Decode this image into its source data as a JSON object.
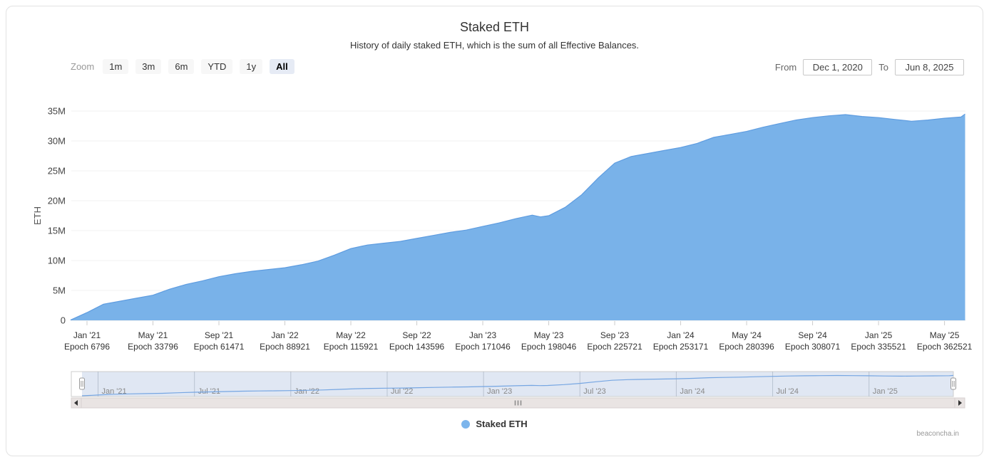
{
  "header": {
    "title": "Staked ETH",
    "subtitle": "History of daily staked ETH, which is the sum of all Effective Balances."
  },
  "toolbar": {
    "zoom_label": "Zoom",
    "zoom_buttons": [
      {
        "label": "1m",
        "selected": false
      },
      {
        "label": "3m",
        "selected": false
      },
      {
        "label": "6m",
        "selected": false
      },
      {
        "label": "YTD",
        "selected": false
      },
      {
        "label": "1y",
        "selected": false
      },
      {
        "label": "All",
        "selected": true
      }
    ],
    "from_label": "From",
    "from_value": "Dec 1, 2020",
    "to_label": "To",
    "to_value": "Jun 8, 2025"
  },
  "legend": {
    "series_label": "Staked ETH",
    "marker_color": "#7cb5ec"
  },
  "credits": "beaconcha.in",
  "chart_data": {
    "type": "area",
    "title": "Staked ETH",
    "xlabel": "",
    "ylabel": "ETH",
    "ylim": [
      0,
      35000000
    ],
    "grid": true,
    "legend_position": "bottom",
    "yticks": [
      {
        "v": 0,
        "label": "0"
      },
      {
        "v": 5,
        "label": "5M"
      },
      {
        "v": 10,
        "label": "10M"
      },
      {
        "v": 15,
        "label": "15M"
      },
      {
        "v": 20,
        "label": "20M"
      },
      {
        "v": 25,
        "label": "25M"
      },
      {
        "v": 30,
        "label": "30M"
      },
      {
        "v": 35,
        "label": "35M"
      }
    ],
    "xticks": [
      {
        "m": 1,
        "date": "Jan '21",
        "epoch": "Epoch 6796"
      },
      {
        "m": 5,
        "date": "May '21",
        "epoch": "Epoch 33796"
      },
      {
        "m": 9,
        "date": "Sep '21",
        "epoch": "Epoch 61471"
      },
      {
        "m": 13,
        "date": "Jan '22",
        "epoch": "Epoch 88921"
      },
      {
        "m": 17,
        "date": "May '22",
        "epoch": "Epoch 115921"
      },
      {
        "m": 21,
        "date": "Sep '22",
        "epoch": "Epoch 143596"
      },
      {
        "m": 25,
        "date": "Jan '23",
        "epoch": "Epoch 171046"
      },
      {
        "m": 29,
        "date": "May '23",
        "epoch": "Epoch 198046"
      },
      {
        "m": 33,
        "date": "Sep '23",
        "epoch": "Epoch 225721"
      },
      {
        "m": 37,
        "date": "Jan '24",
        "epoch": "Epoch 253171"
      },
      {
        "m": 41,
        "date": "May '24",
        "epoch": "Epoch 280396"
      },
      {
        "m": 45,
        "date": "Sep '24",
        "epoch": "Epoch 308071"
      },
      {
        "m": 49,
        "date": "Jan '25",
        "epoch": "Epoch 335521"
      },
      {
        "m": 53,
        "date": "May '25",
        "epoch": "Epoch 362521"
      }
    ],
    "navigator_ticks": [
      {
        "m": 1,
        "label": "Jan '21"
      },
      {
        "m": 7,
        "label": "Jul '21"
      },
      {
        "m": 13,
        "label": "Jan '22"
      },
      {
        "m": 19,
        "label": "Jul '22"
      },
      {
        "m": 25,
        "label": "Jan '23"
      },
      {
        "m": 31,
        "label": "Jul '23"
      },
      {
        "m": 37,
        "label": "Jan '24"
      },
      {
        "m": 43,
        "label": "Jul '24"
      },
      {
        "m": 49,
        "label": "Jan '25"
      }
    ],
    "series": [
      {
        "name": "Staked ETH",
        "color": "#7cb5ec",
        "fill_color": "#79b2e9",
        "line_color": "#5e9ce0",
        "x_unit": "month_index (0 = Dec 2020, 54 = Jun 2025)",
        "y_unit": "ETH, millions",
        "points": [
          [
            0,
            0.05
          ],
          [
            1,
            1.3
          ],
          [
            2,
            2.7
          ],
          [
            3,
            3.2
          ],
          [
            4,
            3.7
          ],
          [
            5,
            4.2
          ],
          [
            6,
            5.2
          ],
          [
            7,
            6.0
          ],
          [
            8,
            6.6
          ],
          [
            9,
            7.3
          ],
          [
            10,
            7.8
          ],
          [
            11,
            8.2
          ],
          [
            12,
            8.5
          ],
          [
            13,
            8.8
          ],
          [
            14,
            9.3
          ],
          [
            15,
            9.9
          ],
          [
            16,
            10.9
          ],
          [
            17,
            12.0
          ],
          [
            18,
            12.6
          ],
          [
            19,
            12.9
          ],
          [
            20,
            13.2
          ],
          [
            21,
            13.7
          ],
          [
            22,
            14.2
          ],
          [
            23,
            14.7
          ],
          [
            24,
            15.1
          ],
          [
            25,
            15.7
          ],
          [
            26,
            16.3
          ],
          [
            27,
            17.0
          ],
          [
            28,
            17.6
          ],
          [
            28.5,
            17.3
          ],
          [
            29,
            17.5
          ],
          [
            30,
            18.9
          ],
          [
            31,
            21.0
          ],
          [
            32,
            23.8
          ],
          [
            33,
            26.3
          ],
          [
            34,
            27.4
          ],
          [
            35,
            27.9
          ],
          [
            36,
            28.4
          ],
          [
            37,
            28.9
          ],
          [
            38,
            29.6
          ],
          [
            39,
            30.6
          ],
          [
            40,
            31.1
          ],
          [
            41,
            31.6
          ],
          [
            42,
            32.3
          ],
          [
            43,
            32.9
          ],
          [
            44,
            33.5
          ],
          [
            45,
            33.9
          ],
          [
            46,
            34.2
          ],
          [
            47,
            34.4
          ],
          [
            48,
            34.1
          ],
          [
            49,
            33.9
          ],
          [
            50,
            33.6
          ],
          [
            51,
            33.3
          ],
          [
            52,
            33.5
          ],
          [
            53,
            33.8
          ],
          [
            54,
            34.0
          ],
          [
            54.25,
            34.5
          ]
        ]
      }
    ]
  }
}
